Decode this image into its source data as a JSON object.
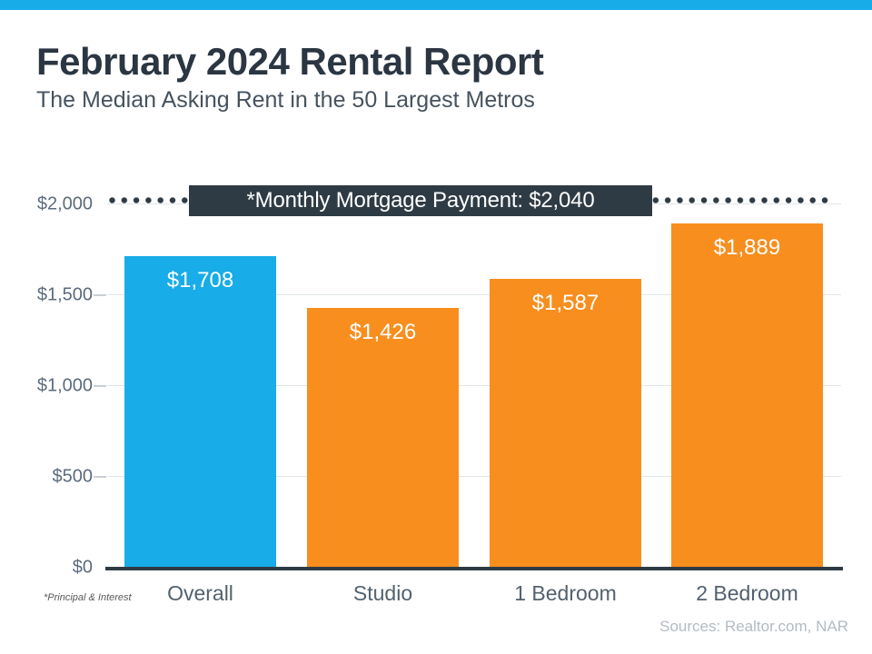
{
  "header": {
    "title": "February 2024 Rental Report",
    "subtitle": "The Median Asking Rent in the 50 Largest Metros"
  },
  "chart_data": {
    "type": "bar",
    "categories": [
      "Overall",
      "Studio",
      "1 Bedroom",
      "2 Bedroom"
    ],
    "values": [
      1708,
      1426,
      1587,
      1889
    ],
    "value_labels": [
      "$1,708",
      "$1,426",
      "$1,587",
      "$1,889"
    ],
    "bar_colors": [
      "#18ace8",
      "#f78e1e",
      "#f78e1e",
      "#f78e1e"
    ],
    "ylim": [
      0,
      2000
    ],
    "y_ticks": [
      {
        "value": 0,
        "label": "$0"
      },
      {
        "value": 500,
        "label": "$500"
      },
      {
        "value": 1000,
        "label": "$1,000"
      },
      {
        "value": 1500,
        "label": "$1,500"
      },
      {
        "value": 2000,
        "label": "$2,000"
      }
    ],
    "grid": true,
    "reference_line": {
      "value": 2040,
      "label": "*Monthly Mortgage Payment: $2,040",
      "style": "dotted"
    }
  },
  "footnote": "*Principal & Interest",
  "sources": "Sources: Realtor.com,  NAR",
  "colors": {
    "accent_blue": "#18ace8",
    "accent_orange": "#f78e1e",
    "dark_slate": "#2e3b44",
    "title_text": "#2b3642",
    "axis_text": "#5c6b7b"
  }
}
